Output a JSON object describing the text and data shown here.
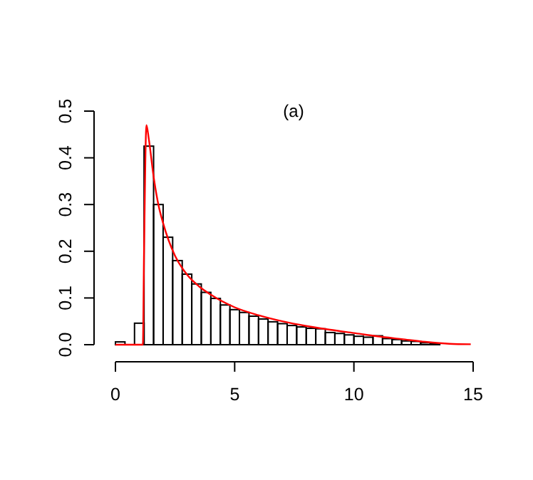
{
  "chart_data": {
    "type": "histogram",
    "title": "(a)",
    "bins": [
      0,
      0.4,
      0.8,
      1.2,
      1.6,
      2.0,
      2.4,
      2.8,
      3.2,
      3.6,
      4.0,
      4.4,
      4.8,
      5.2,
      5.6,
      6.0,
      6.4,
      6.8,
      7.2,
      7.6,
      8.0,
      8.4,
      8.8,
      9.2,
      9.6,
      10.0,
      10.4,
      10.8,
      11.2,
      11.6,
      12.0,
      12.4,
      12.8,
      13.2,
      13.6
    ],
    "values": [
      0.006,
      0,
      0.046,
      0.425,
      0.3,
      0.23,
      0.18,
      0.151,
      0.13,
      0.112,
      0.099,
      0.085,
      0.075,
      0.069,
      0.061,
      0.055,
      0.049,
      0.045,
      0.041,
      0.038,
      0.035,
      0.034,
      0.026,
      0.024,
      0.021,
      0.018,
      0.016,
      0.019,
      0.013,
      0.011,
      0.008,
      0.007,
      0.004,
      0.002
    ],
    "color": "#000000",
    "series": [
      {
        "type": "line",
        "color": "#ff0000",
        "x": [
          0,
          1.15,
          1.2,
          1.3,
          1.4,
          1.6,
          1.8,
          2,
          2.5,
          3,
          3.5,
          4,
          5,
          6,
          7,
          8,
          9,
          10,
          11,
          12,
          13,
          14,
          14.9
        ],
        "values": [
          0,
          0,
          0.2,
          0.47,
          0.44,
          0.36,
          0.3,
          0.26,
          0.19,
          0.15,
          0.125,
          0.107,
          0.08,
          0.063,
          0.05,
          0.04,
          0.032,
          0.025,
          0.018,
          0.012,
          0.006,
          0.002,
          0.001
        ]
      }
    ],
    "xlim": [
      0,
      15
    ],
    "xticks": [
      0,
      5,
      10,
      15
    ],
    "ylim": [
      0,
      0.5
    ],
    "yticks": [
      {
        "value": 0,
        "label": "0.0"
      },
      {
        "value": 0.1,
        "label": "0.1"
      },
      {
        "value": 0.2,
        "label": "0.2"
      },
      {
        "value": 0.3,
        "label": "0.3"
      },
      {
        "value": 0.4,
        "label": "0.4"
      },
      {
        "value": 0.5,
        "label": "0.5"
      }
    ],
    "grid": false
  }
}
